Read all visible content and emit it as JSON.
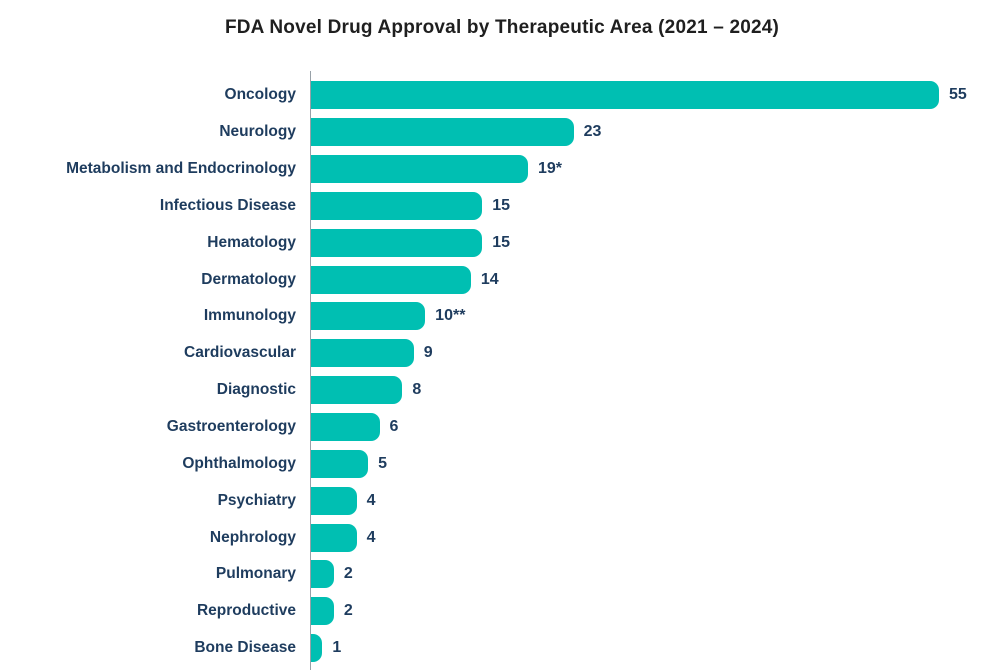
{
  "chart_data": {
    "type": "bar",
    "orientation": "horizontal",
    "title": "FDA Novel Drug Approval by Therapeutic Area (2021 – 2024)",
    "categories": [
      "Oncology",
      "Neurology",
      "Metabolism and Endocrinology",
      "Infectious Disease",
      "Hematology",
      "Dermatology",
      "Immunology",
      "Cardiovascular",
      "Diagnostic",
      "Gastroenterology",
      "Ophthalmology",
      "Psychiatry",
      "Nephrology",
      "Pulmonary",
      "Reproductive",
      "Bone Disease"
    ],
    "values": [
      55,
      23,
      19,
      15,
      15,
      14,
      10,
      9,
      8,
      6,
      5,
      4,
      4,
      2,
      2,
      1
    ],
    "value_labels": [
      "55",
      "23",
      "19*",
      "15",
      "15",
      "14",
      "10**",
      "9",
      "8",
      "6",
      "5",
      "4",
      "4",
      "2",
      "2",
      "1"
    ],
    "xlabel": "",
    "ylabel": "",
    "xlim": [
      0,
      55
    ],
    "grid": false,
    "legend": false,
    "colors": {
      "bar": "#00bfb2",
      "category_text": "#1e3c5e",
      "value_text": "#1e3c5e",
      "title_text": "#1f1f1f",
      "axis_line": "#98a1a8"
    }
  }
}
